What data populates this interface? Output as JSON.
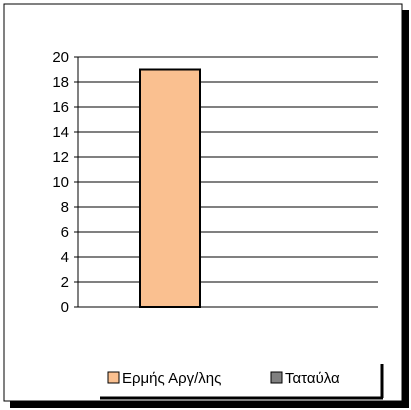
{
  "chart_data": {
    "type": "bar",
    "categories": [
      ""
    ],
    "series": [
      {
        "name": "Ερμής Αργ/λης",
        "values": [
          19
        ],
        "color": "#FAC090"
      },
      {
        "name": "Ταταύλα",
        "values": [
          0
        ],
        "color": "#808080"
      }
    ],
    "title": "",
    "xlabel": "",
    "ylabel": "",
    "ylim": [
      0,
      20
    ],
    "yticks": [
      0,
      2,
      4,
      6,
      8,
      10,
      12,
      14,
      16,
      18,
      20
    ],
    "grid": true,
    "legend_position": "bottom"
  }
}
